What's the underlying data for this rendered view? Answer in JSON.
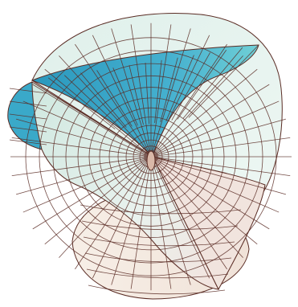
{
  "colors": {
    "background": "#ffffff",
    "mesh_line": "#5a2c24",
    "surface_pale": "#e9f4f0",
    "surface_mint": "#cfe9e2",
    "surface_teal": "#55bcd2",
    "surface_teal_dark": "#2a98bd",
    "surface_cream": "#f6ece3",
    "surface_blush": "#f0dcd6"
  }
}
